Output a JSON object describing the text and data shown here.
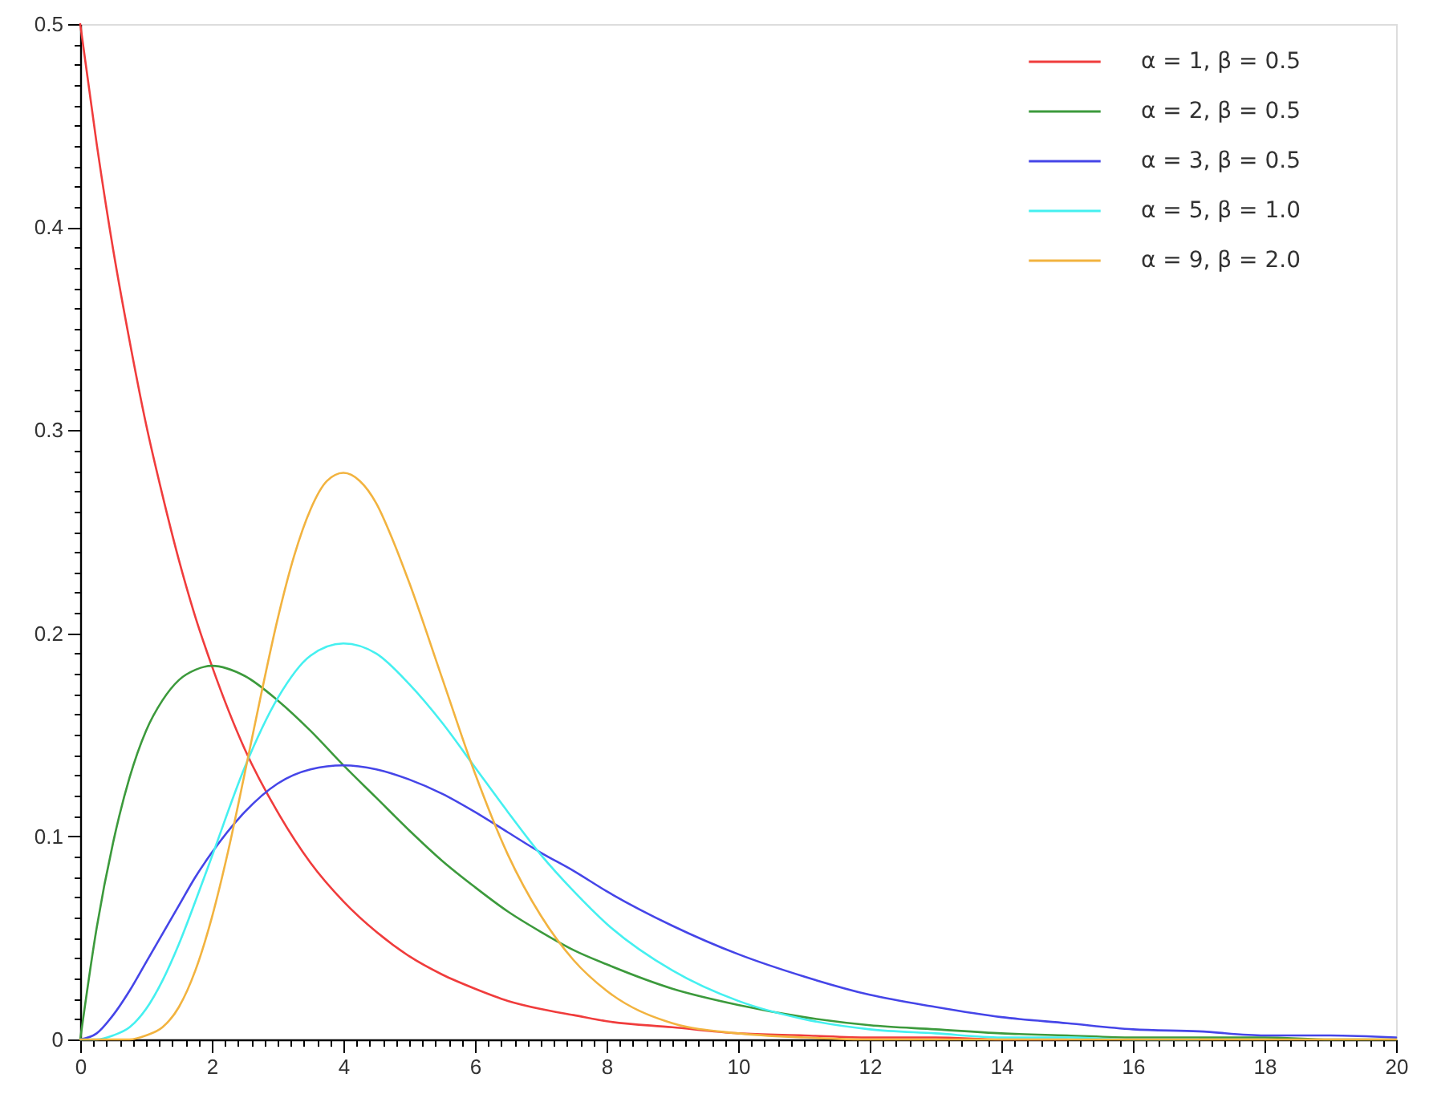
{
  "chart_data": {
    "type": "line",
    "x": [
      0,
      0.25,
      0.5,
      0.75,
      1,
      1.25,
      1.5,
      1.75,
      2,
      2.5,
      3,
      3.5,
      4,
      4.5,
      5,
      5.5,
      6,
      6.5,
      7,
      7.5,
      8,
      9,
      10,
      11,
      12,
      13,
      14,
      15,
      16,
      17,
      18,
      19,
      20
    ],
    "series": [
      {
        "name": "α = 1, β = 0.5",
        "color": "#f03c3c",
        "values": [
          0.5,
          0.441,
          0.389,
          0.344,
          0.303,
          0.268,
          0.236,
          0.208,
          0.184,
          0.143,
          0.112,
          0.087,
          0.068,
          0.053,
          0.041,
          0.032,
          0.025,
          0.019,
          0.015,
          0.012,
          0.009,
          0.006,
          0.003,
          0.002,
          0.001,
          0.001,
          0,
          0,
          null,
          null,
          null,
          null,
          null
        ]
      },
      {
        "name": "α = 2, β = 0.5",
        "color": "#3c9a3c",
        "values": [
          0,
          0.055,
          0.097,
          0.129,
          0.152,
          0.167,
          0.177,
          0.182,
          0.184,
          0.179,
          0.167,
          0.152,
          0.135,
          0.119,
          0.103,
          0.088,
          0.075,
          0.063,
          0.053,
          0.044,
          0.037,
          0.025,
          0.017,
          0.011,
          0.007,
          0.005,
          0.003,
          0.002,
          0.001,
          0.001,
          0.001,
          0,
          0
        ]
      },
      {
        "name": "α = 3, β = 0.5",
        "color": "#4545e8",
        "values": [
          0,
          0.003,
          0.012,
          0.024,
          0.038,
          0.052,
          0.066,
          0.08,
          0.092,
          0.112,
          0.126,
          0.133,
          0.135,
          0.133,
          0.128,
          0.121,
          0.112,
          0.102,
          0.092,
          0.083,
          0.073,
          0.056,
          0.042,
          0.031,
          0.022,
          0.016,
          0.011,
          0.008,
          0.005,
          0.004,
          0.002,
          0.002,
          0.001
        ]
      },
      {
        "name": "α = 5, β = 1.0",
        "color": "#45f0f0",
        "values": [
          0,
          0,
          0.002,
          0.006,
          0.015,
          0.029,
          0.047,
          0.068,
          0.09,
          0.134,
          0.168,
          0.189,
          0.195,
          0.19,
          0.175,
          0.156,
          0.134,
          0.112,
          0.091,
          0.073,
          0.057,
          0.034,
          0.019,
          0.01,
          0.005,
          0.003,
          0.001,
          0.001,
          0,
          0,
          null,
          null,
          null
        ]
      },
      {
        "name": "α = 9, β = 2.0",
        "color": "#f2b33f",
        "x": [
          0,
          0.5,
          0.75,
          1,
          1.25,
          1.5,
          1.75,
          2,
          2.25,
          2.5,
          2.75,
          3,
          3.25,
          3.5,
          3.75,
          4,
          4.25,
          4.5,
          4.75,
          5,
          5.5,
          6,
          6.5,
          7,
          7.5,
          8,
          9,
          10,
          11,
          12,
          14,
          16,
          18,
          20
        ],
        "values": [
          0,
          0,
          0,
          0.002,
          0.006,
          0.016,
          0.034,
          0.06,
          0.093,
          0.131,
          0.17,
          0.207,
          0.238,
          0.261,
          0.275,
          0.279,
          0.275,
          0.264,
          0.246,
          0.225,
          0.178,
          0.131,
          0.091,
          0.061,
          0.039,
          0.024,
          0.008,
          0.003,
          0.001,
          0,
          0,
          0,
          0,
          0
        ]
      }
    ],
    "xlim": [
      0,
      20
    ],
    "ylim": [
      0,
      0.5
    ],
    "xticks": [
      0,
      {
        "value": 0.2,
        "label": null
      },
      {
        "value": 0.4,
        "label": null
      },
      {
        "value": 0.6,
        "label": null
      },
      {
        "value": 0.8,
        "label": null
      },
      {
        "value": 1,
        "label": null
      },
      {
        "value": 1.2,
        "label": null
      },
      {
        "value": 1.4,
        "label": null
      },
      {
        "value": 1.6,
        "label": null
      },
      {
        "value": 1.8,
        "label": null
      },
      2,
      {
        "value": 2.2,
        "label": null
      },
      {
        "value": 2.4,
        "label": null
      },
      {
        "value": 2.6,
        "label": null
      },
      {
        "value": 2.8,
        "label": null
      },
      {
        "value": 3,
        "label": null
      },
      {
        "value": 3.2,
        "label": null
      },
      {
        "value": 3.4,
        "label": null
      },
      {
        "value": 3.6,
        "label": null
      },
      {
        "value": 3.8,
        "label": null
      },
      4,
      {
        "value": 4.2,
        "label": null
      },
      {
        "value": 4.4,
        "label": null
      },
      {
        "value": 4.6,
        "label": null
      },
      {
        "value": 4.8,
        "label": null
      },
      {
        "value": 5,
        "label": null
      },
      {
        "value": 5.2,
        "label": null
      },
      {
        "value": 5.4,
        "label": null
      },
      {
        "value": 5.6,
        "label": null
      },
      {
        "value": 5.8,
        "label": null
      },
      6,
      {
        "value": 6.2,
        "label": null
      },
      {
        "value": 6.4,
        "label": null
      },
      {
        "value": 6.6,
        "label": null
      },
      {
        "value": 6.8,
        "label": null
      },
      {
        "value": 7,
        "label": null
      },
      {
        "value": 7.2,
        "label": null
      },
      {
        "value": 7.4,
        "label": null
      },
      {
        "value": 7.6,
        "label": null
      },
      {
        "value": 7.8,
        "label": null
      },
      8,
      {
        "value": 8.2,
        "label": null
      },
      {
        "value": 8.4,
        "label": null
      },
      {
        "value": 8.6,
        "label": null
      },
      {
        "value": 8.8,
        "label": null
      },
      {
        "value": 9,
        "label": null
      },
      {
        "value": 9.2,
        "label": null
      },
      {
        "value": 9.4,
        "label": null
      },
      {
        "value": 9.6,
        "label": null
      },
      {
        "value": 9.8,
        "label": null
      },
      10,
      {
        "value": 10.2,
        "label": null
      },
      {
        "value": 10.4,
        "label": null
      },
      {
        "value": 10.6,
        "label": null
      },
      {
        "value": 10.8,
        "label": null
      },
      {
        "value": 11,
        "label": null
      },
      {
        "value": 11.2,
        "label": null
      },
      {
        "value": 11.4,
        "label": null
      },
      {
        "value": 11.6,
        "label": null
      },
      {
        "value": 11.8,
        "label": null
      },
      12,
      {
        "value": 12.2,
        "label": null
      },
      {
        "value": 12.4,
        "label": null
      },
      {
        "value": 12.6,
        "label": null
      },
      {
        "value": 12.8,
        "label": null
      },
      {
        "value": 13,
        "label": null
      },
      {
        "value": 13.2,
        "label": null
      },
      {
        "value": 13.4,
        "label": null
      },
      {
        "value": 13.6,
        "label": null
      },
      {
        "value": 13.8,
        "label": null
      },
      14,
      {
        "value": 14.2,
        "label": null
      },
      {
        "value": 14.4,
        "label": null
      },
      {
        "value": 14.6,
        "label": null
      },
      {
        "value": 14.8,
        "label": null
      },
      {
        "value": 15,
        "label": null
      },
      {
        "value": 15.2,
        "label": null
      },
      {
        "value": 15.4,
        "label": null
      },
      {
        "value": 15.6,
        "label": null
      },
      {
        "value": 15.8,
        "label": null
      },
      16,
      {
        "value": 16.2,
        "label": null
      },
      {
        "value": 16.4,
        "label": null
      },
      {
        "value": 16.6,
        "label": null
      },
      {
        "value": 16.8,
        "label": null
      },
      {
        "value": 17,
        "label": null
      },
      {
        "value": 17.2,
        "label": null
      },
      {
        "value": 17.4,
        "label": null
      },
      {
        "value": 17.6,
        "label": null
      },
      {
        "value": 17.8,
        "label": null
      },
      18,
      {
        "value": 18.2,
        "label": null
      },
      {
        "value": 18.4,
        "label": null
      },
      {
        "value": 18.6,
        "label": null
      },
      {
        "value": 18.8,
        "label": null
      },
      {
        "value": 19,
        "label": null
      },
      {
        "value": 19.2,
        "label": null
      },
      {
        "value": 19.4,
        "label": null
      },
      {
        "value": 19.6,
        "label": null
      },
      {
        "value": 19.8,
        "label": null
      },
      20
    ],
    "yticks": [
      0,
      {
        "value": 0.01,
        "label": null
      },
      {
        "value": 0.02,
        "label": null
      },
      {
        "value": 0.03,
        "label": null
      },
      {
        "value": 0.04,
        "label": null
      },
      {
        "value": 0.05,
        "label": null
      },
      {
        "value": 0.06,
        "label": null
      },
      {
        "value": 0.07,
        "label": null
      },
      {
        "value": 0.08,
        "label": null
      },
      {
        "value": 0.09,
        "label": null
      },
      0.1,
      {
        "value": 0.11,
        "label": null
      },
      {
        "value": 0.12,
        "label": null
      },
      {
        "value": 0.13,
        "label": null
      },
      {
        "value": 0.14,
        "label": null
      },
      {
        "value": 0.15,
        "label": null
      },
      {
        "value": 0.16,
        "label": null
      },
      {
        "value": 0.17,
        "label": null
      },
      {
        "value": 0.18,
        "label": null
      },
      {
        "value": 0.19,
        "label": null
      },
      0.2,
      {
        "value": 0.21,
        "label": null
      },
      {
        "value": 0.22,
        "label": null
      },
      {
        "value": 0.23,
        "label": null
      },
      {
        "value": 0.24,
        "label": null
      },
      {
        "value": 0.25,
        "label": null
      },
      {
        "value": 0.26,
        "label": null
      },
      {
        "value": 0.27,
        "label": null
      },
      {
        "value": 0.28,
        "label": null
      },
      {
        "value": 0.29,
        "label": null
      },
      0.3,
      {
        "value": 0.31,
        "label": null
      },
      {
        "value": 0.32,
        "label": null
      },
      {
        "value": 0.33,
        "label": null
      },
      {
        "value": 0.34,
        "label": null
      },
      {
        "value": 0.35,
        "label": null
      },
      {
        "value": 0.36,
        "label": null
      },
      {
        "value": 0.37,
        "label": null
      },
      {
        "value": 0.38,
        "label": null
      },
      {
        "value": 0.39,
        "label": null
      },
      0.4,
      {
        "value": 0.41,
        "label": null
      },
      {
        "value": 0.42,
        "label": null
      },
      {
        "value": 0.43,
        "label": null
      },
      {
        "value": 0.44,
        "label": null
      },
      {
        "value": 0.45,
        "label": null
      },
      {
        "value": 0.46,
        "label": null
      },
      {
        "value": 0.47,
        "label": null
      },
      {
        "value": 0.48,
        "label": null
      },
      {
        "value": 0.49,
        "label": null
      },
      0.5
    ],
    "legend": "top right"
  }
}
